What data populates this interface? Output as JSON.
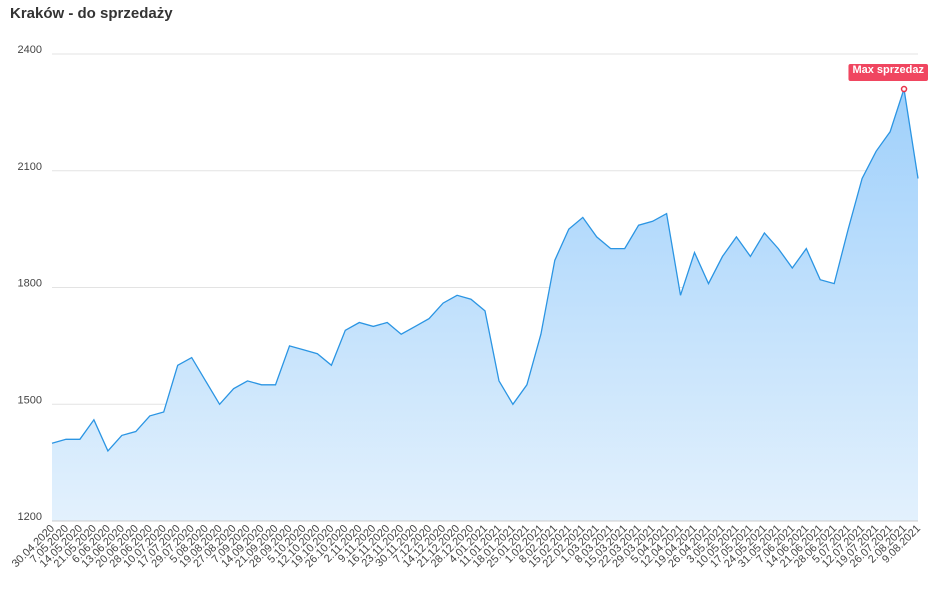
{
  "chart_data": {
    "type": "area-line",
    "title": "Kraków - do sprzedaży",
    "categories": [
      "30.04.2020",
      "7.05.2020",
      "14.05.2020",
      "21.05.2020",
      "6.06.2020",
      "13.06.2020",
      "20.06.2020",
      "28.06.2020",
      "10.07.2020",
      "17.07.2020",
      "29.07.2020",
      "5.08.2020",
      "19.08.2020",
      "27.08.2020",
      "7.09.2020",
      "14.09.2020",
      "21.09.2020",
      "28.09.2020",
      "5.10.2020",
      "12.10.2020",
      "19.10.2020",
      "26.10.2020",
      "2.11.2020",
      "9.11.2020",
      "16.11.2020",
      "23.11.2020",
      "30.11.2020",
      "7.12.2020",
      "14.12.2020",
      "21.12.2020",
      "28.12.2020",
      "4.01.2021",
      "11.01.2021",
      "18.01.2021",
      "25.01.2021",
      "1.02.2021",
      "8.02.2021",
      "15.02.2021",
      "22.02.2021",
      "1.03.2021",
      "8.03.2021",
      "15.03.2021",
      "22.03.2021",
      "29.03.2021",
      "5.04.2021",
      "12.04.2021",
      "19.04.2021",
      "26.04.2021",
      "3.05.2021",
      "10.05.2021",
      "17.05.2021",
      "24.05.2021",
      "31.05.2021",
      "7.06.2021",
      "14.06.2021",
      "21.06.2021",
      "28.06.2021",
      "5.07.2021",
      "12.07.2021",
      "19.07.2021",
      "26.07.2021",
      "2.08.2021",
      "9.08.2021"
    ],
    "values": [
      1400,
      1410,
      1410,
      1460,
      1380,
      1420,
      1430,
      1470,
      1480,
      1600,
      1620,
      1560,
      1500,
      1540,
      1560,
      1550,
      1550,
      1650,
      1640,
      1630,
      1600,
      1690,
      1710,
      1700,
      1710,
      1680,
      1700,
      1720,
      1760,
      1780,
      1770,
      1740,
      1560,
      1500,
      1550,
      1680,
      1870,
      1950,
      1980,
      1930,
      1900,
      1900,
      1960,
      1970,
      1990,
      1780,
      1890,
      1810,
      1880,
      1930,
      1880,
      1940,
      1900,
      1850,
      1900,
      1820,
      1810,
      1950,
      2080,
      2150,
      2200,
      2310,
      2080
    ],
    "color": "#2b95e3",
    "ylim": [
      1200,
      2400
    ],
    "yticks": [
      1200,
      1500,
      1800,
      2100,
      2400
    ],
    "grid": true,
    "annotation": "Max sprzedaz"
  }
}
